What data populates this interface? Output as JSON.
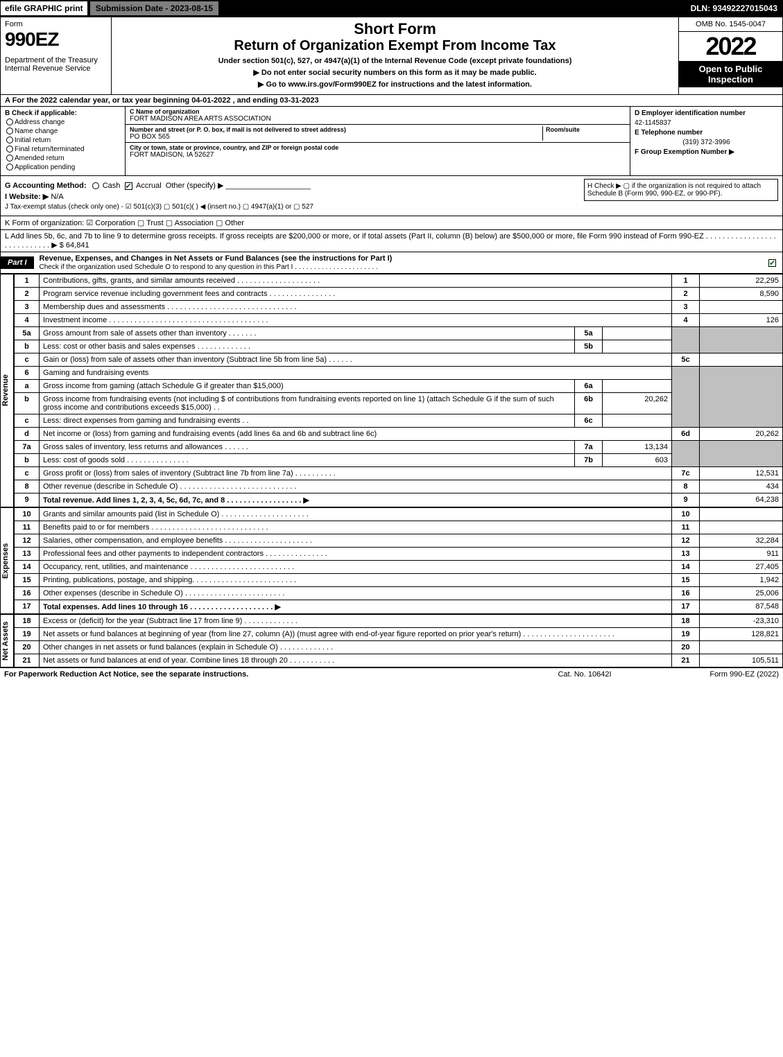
{
  "topbar": {
    "efile": "efile GRAPHIC print",
    "submission": "Submission Date - 2023-08-15",
    "dln": "DLN: 93492227015043"
  },
  "header": {
    "form_word": "Form",
    "form_num": "990EZ",
    "dept": "Department of the Treasury\nInternal Revenue Service",
    "short": "Short Form",
    "title": "Return of Organization Exempt From Income Tax",
    "under": "Under section 501(c), 527, or 4947(a)(1) of the Internal Revenue Code (except private foundations)",
    "note1": "▶ Do not enter social security numbers on this form as it may be made public.",
    "note2": "▶ Go to www.irs.gov/Form990EZ for instructions and the latest information.",
    "omb": "OMB No. 1545-0047",
    "year": "2022",
    "open": "Open to Public Inspection"
  },
  "sectionA": "A  For the 2022 calendar year, or tax year beginning 04-01-2022 , and ending 03-31-2023",
  "sectionB": {
    "title": "B  Check if applicable:",
    "items": [
      "Address change",
      "Name change",
      "Initial return",
      "Final return/terminated",
      "Amended return",
      "Application pending"
    ]
  },
  "sectionC": {
    "name_label": "C Name of organization",
    "name": "FORT MADISON AREA ARTS ASSOCIATION",
    "street_label": "Number and street (or P. O. box, if mail is not delivered to street address)",
    "street": "PO BOX 565",
    "room_label": "Room/suite",
    "city_label": "City or town, state or province, country, and ZIP or foreign postal code",
    "city": "FORT MADISON, IA  52627"
  },
  "sectionD": {
    "ein_label": "D Employer identification number",
    "ein": "42-1145837",
    "tel_label": "E Telephone number",
    "tel": "(319) 372-3996",
    "group_label": "F Group Exemption Number  ▶"
  },
  "sectionG": {
    "label": "G Accounting Method:",
    "cash": "Cash",
    "accrual": "Accrual",
    "other": "Other (specify) ▶"
  },
  "sectionH": "H  Check ▶  ▢  if the organization is not required to attach Schedule B (Form 990, 990-EZ, or 990-PF).",
  "sectionI": {
    "label": "I Website: ▶",
    "value": "N/A"
  },
  "sectionJ": "J Tax-exempt status (check only one) -  ☑ 501(c)(3)  ▢ 501(c)(  ) ◀ (insert no.)  ▢ 4947(a)(1) or  ▢ 527",
  "sectionK": "K Form of organization:   ☑ Corporation   ▢ Trust   ▢ Association   ▢ Other",
  "sectionL": "L Add lines 5b, 6c, and 7b to line 9 to determine gross receipts. If gross receipts are $200,000 or more, or if total assets (Part II, column (B) below) are $500,000 or more, file Form 990 instead of Form 990-EZ  . . . . . . . . . . . . . . . . . . . . . . . . . . . .  ▶ $ 64,841",
  "partI": {
    "tab": "Part I",
    "title": "Revenue, Expenses, and Changes in Net Assets or Fund Balances (see the instructions for Part I)",
    "checkline": "Check if the organization used Schedule O to respond to any question in this Part I . . . . . . . . . . . . . . . . . . . . . ."
  },
  "sidelabels": {
    "revenue": "Revenue",
    "expenses": "Expenses",
    "netassets": "Net Assets"
  },
  "lines": {
    "l1": {
      "num": "1",
      "desc": "Contributions, gifts, grants, and similar amounts received . . . . . . . . . . . . . . . . . . . .",
      "ref": "1",
      "val": "22,295"
    },
    "l2": {
      "num": "2",
      "desc": "Program service revenue including government fees and contracts . . . . . . . . . . . . . . . .",
      "ref": "2",
      "val": "8,590"
    },
    "l3": {
      "num": "3",
      "desc": "Membership dues and assessments . . . . . . . . . . . . . . . . . . . . . . . . . . . . . . .",
      "ref": "3",
      "val": ""
    },
    "l4": {
      "num": "4",
      "desc": "Investment income . . . . . . . . . . . . . . . . . . . . . . . . . . . . . . . . . . . . . .",
      "ref": "4",
      "val": "126"
    },
    "l5a": {
      "num": "5a",
      "desc": "Gross amount from sale of assets other than inventory . . . . . . .",
      "subref": "5a",
      "subval": ""
    },
    "l5b": {
      "num": "b",
      "desc": "Less: cost or other basis and sales expenses . . . . . . . . . . . . .",
      "subref": "5b",
      "subval": ""
    },
    "l5c": {
      "num": "c",
      "desc": "Gain or (loss) from sale of assets other than inventory (Subtract line 5b from line 5a) . . . . . .",
      "ref": "5c",
      "val": ""
    },
    "l6": {
      "num": "6",
      "desc": "Gaming and fundraising events"
    },
    "l6a": {
      "num": "a",
      "desc": "Gross income from gaming (attach Schedule G if greater than $15,000)",
      "subref": "6a",
      "subval": ""
    },
    "l6b": {
      "num": "b",
      "desc": "Gross income from fundraising events (not including $                    of contributions from fundraising events reported on line 1) (attach Schedule G if the sum of such gross income and contributions exceeds $15,000)    . .",
      "subref": "6b",
      "subval": "20,262"
    },
    "l6c": {
      "num": "c",
      "desc": "Less: direct expenses from gaming and fundraising events    . .",
      "subref": "6c",
      "subval": ""
    },
    "l6d": {
      "num": "d",
      "desc": "Net income or (loss) from gaming and fundraising events (add lines 6a and 6b and subtract line 6c)",
      "ref": "6d",
      "val": "20,262"
    },
    "l7a": {
      "num": "7a",
      "desc": "Gross sales of inventory, less returns and allowances . . . . . .",
      "subref": "7a",
      "subval": "13,134"
    },
    "l7b": {
      "num": "b",
      "desc": "Less: cost of goods sold       . . . . . . . . . . . . . . .",
      "subref": "7b",
      "subval": "603"
    },
    "l7c": {
      "num": "c",
      "desc": "Gross profit or (loss) from sales of inventory (Subtract line 7b from line 7a) . . . . . . . . . .",
      "ref": "7c",
      "val": "12,531"
    },
    "l8": {
      "num": "8",
      "desc": "Other revenue (describe in Schedule O) . . . . . . . . . . . . . . . . . . . . . . . . . . . .",
      "ref": "8",
      "val": "434"
    },
    "l9": {
      "num": "9",
      "desc": "Total revenue. Add lines 1, 2, 3, 4, 5c, 6d, 7c, and 8  . . . . . . . . . . . . . . . . . .    ▶",
      "ref": "9",
      "val": "64,238"
    },
    "l10": {
      "num": "10",
      "desc": "Grants and similar amounts paid (list in Schedule O) . . . . . . . . . . . . . . . . . . . . .",
      "ref": "10",
      "val": ""
    },
    "l11": {
      "num": "11",
      "desc": "Benefits paid to or for members     . . . . . . . . . . . . . . . . . . . . . . . . . . . .",
      "ref": "11",
      "val": ""
    },
    "l12": {
      "num": "12",
      "desc": "Salaries, other compensation, and employee benefits . . . . . . . . . . . . . . . . . . . . .",
      "ref": "12",
      "val": "32,284"
    },
    "l13": {
      "num": "13",
      "desc": "Professional fees and other payments to independent contractors . . . . . . . . . . . . . . .",
      "ref": "13",
      "val": "911"
    },
    "l14": {
      "num": "14",
      "desc": "Occupancy, rent, utilities, and maintenance . . . . . . . . . . . . . . . . . . . . . . . . .",
      "ref": "14",
      "val": "27,405"
    },
    "l15": {
      "num": "15",
      "desc": "Printing, publications, postage, and shipping. . . . . . . . . . . . . . . . . . . . . . . . .",
      "ref": "15",
      "val": "1,942"
    },
    "l16": {
      "num": "16",
      "desc": "Other expenses (describe in Schedule O)     . . . . . . . . . . . . . . . . . . . . . . . .",
      "ref": "16",
      "val": "25,006"
    },
    "l17": {
      "num": "17",
      "desc": "Total expenses. Add lines 10 through 16     . . . . . . . . . . . . . . . . . . . .   ▶",
      "ref": "17",
      "val": "87,548"
    },
    "l18": {
      "num": "18",
      "desc": "Excess or (deficit) for the year (Subtract line 17 from line 9)       . . . . . . . . . . . . .",
      "ref": "18",
      "val": "-23,310"
    },
    "l19": {
      "num": "19",
      "desc": "Net assets or fund balances at beginning of year (from line 27, column (A)) (must agree with end-of-year figure reported on prior year's return) . . . . . . . . . . . . . . . . . . . . . .",
      "ref": "19",
      "val": "128,821"
    },
    "l20": {
      "num": "20",
      "desc": "Other changes in net assets or fund balances (explain in Schedule O) . . . . . . . . . . . . .",
      "ref": "20",
      "val": ""
    },
    "l21": {
      "num": "21",
      "desc": "Net assets or fund balances at end of year. Combine lines 18 through 20 . . . . . . . . . . .",
      "ref": "21",
      "val": "105,511"
    }
  },
  "footer": {
    "left": "For Paperwork Reduction Act Notice, see the separate instructions.",
    "mid": "Cat. No. 10642I",
    "right": "Form 990-EZ (2022)"
  },
  "colors": {
    "black": "#000000",
    "white": "#ffffff",
    "gray": "#808080",
    "shaded": "#c0c0c0",
    "checkgreen": "#006600"
  }
}
